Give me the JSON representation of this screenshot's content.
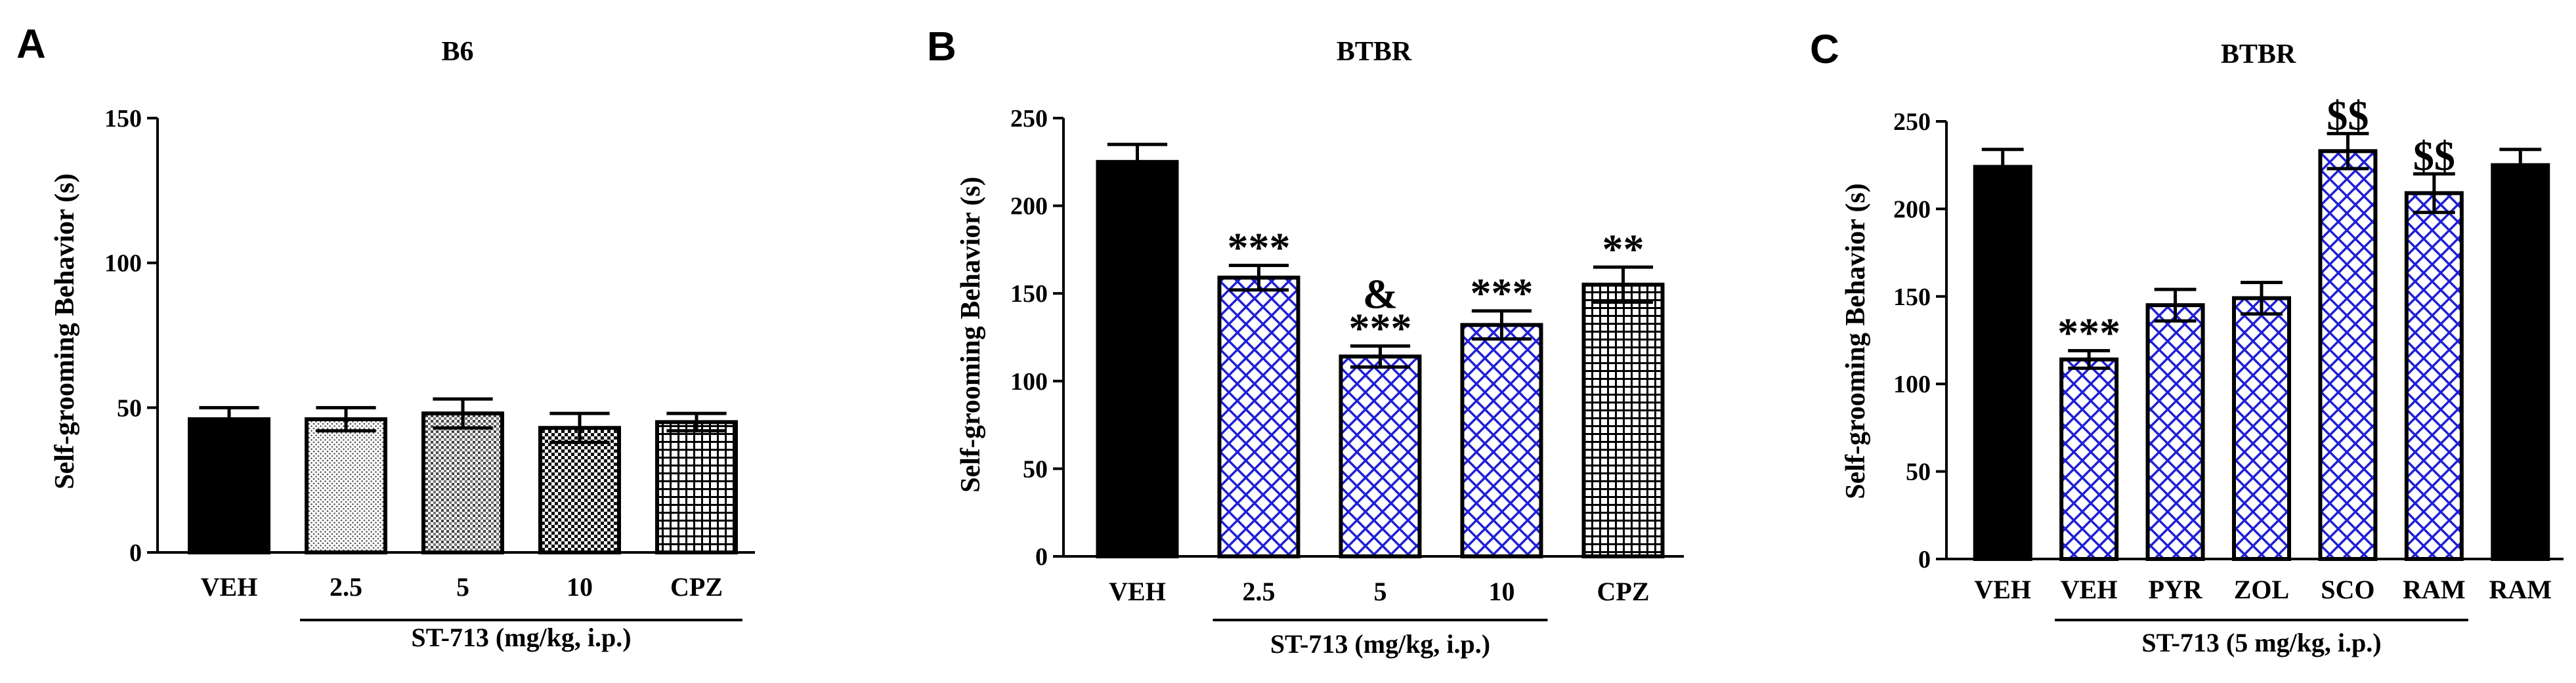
{
  "chart_data": [
    {
      "panel": "A",
      "type": "bar",
      "title": "B6",
      "ylabel": "Self-grooming Behavior (s)",
      "xlabel": "",
      "ylim": [
        0,
        150
      ],
      "yticks": [
        0,
        50,
        100,
        150
      ],
      "categories": [
        "VEH",
        "2.5",
        "5",
        "10",
        "CPZ"
      ],
      "values": [
        46,
        46,
        48,
        43,
        45
      ],
      "errors": [
        4,
        4,
        5,
        5,
        3
      ],
      "fills": [
        "solid",
        "fine-dots",
        "medium-dots",
        "checker",
        "grid"
      ],
      "annotations": [
        "",
        "",
        "",
        "",
        ""
      ],
      "group_label": "ST-713 (mg/kg, i.p.)",
      "group_span": [
        1,
        4
      ]
    },
    {
      "panel": "B",
      "type": "bar",
      "title": "BTBR",
      "ylabel": "Self-grooming Behavior (s)",
      "xlabel": "",
      "ylim": [
        0,
        250
      ],
      "yticks": [
        0,
        50,
        100,
        150,
        200,
        250
      ],
      "categories": [
        "VEH",
        "2.5",
        "5",
        "10",
        "CPZ"
      ],
      "values": [
        225,
        159,
        114,
        132,
        155
      ],
      "errors": [
        10,
        7,
        6,
        8,
        10
      ],
      "fills": [
        "solid",
        "blue-crosshatch",
        "blue-crosshatch",
        "blue-crosshatch",
        "grid"
      ],
      "annotations": [
        "",
        "***",
        "***",
        "***",
        "**"
      ],
      "annotations_top": [
        "",
        "",
        "&",
        "",
        ""
      ],
      "group_label": "ST-713 (mg/kg, i.p.)",
      "group_span": [
        1,
        3
      ]
    },
    {
      "panel": "C",
      "type": "bar",
      "title": "BTBR",
      "ylabel": "Self-grooming Behavior (s)",
      "xlabel": "",
      "ylim": [
        0,
        250
      ],
      "yticks": [
        0,
        50,
        100,
        150,
        200,
        250
      ],
      "categories": [
        "VEH",
        "VEH",
        "PYR",
        "ZOL",
        "SCO",
        "RAM",
        "RAM"
      ],
      "values": [
        224,
        114,
        145,
        149,
        233,
        209,
        225
      ],
      "errors": [
        10,
        5,
        9,
        9,
        10,
        11,
        9
      ],
      "fills": [
        "solid",
        "blue-crosshatch",
        "blue-crosshatch",
        "blue-crosshatch",
        "blue-crosshatch",
        "blue-crosshatch",
        "solid"
      ],
      "annotations": [
        "",
        "***",
        "",
        "",
        "$$",
        "$$",
        ""
      ],
      "annotations_top": [
        "",
        "",
        "",
        "",
        "",
        "",
        ""
      ],
      "group_label": "ST-713 (5 mg/kg, i.p.)",
      "group_span": [
        1,
        5
      ]
    }
  ],
  "colors": {
    "bar_black": "#000000",
    "crosshatch_blue": "#1f1fd6",
    "axis": "#000000",
    "background": "#ffffff"
  }
}
